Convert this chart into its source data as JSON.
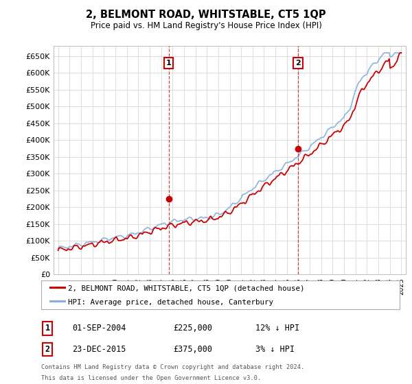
{
  "title": "2, BELMONT ROAD, WHITSTABLE, CT5 1QP",
  "subtitle": "Price paid vs. HM Land Registry's House Price Index (HPI)",
  "ylabel_ticks": [
    "£0",
    "£50K",
    "£100K",
    "£150K",
    "£200K",
    "£250K",
    "£300K",
    "£350K",
    "£400K",
    "£450K",
    "£500K",
    "£550K",
    "£600K",
    "£650K"
  ],
  "ytick_values": [
    0,
    50000,
    100000,
    150000,
    200000,
    250000,
    300000,
    350000,
    400000,
    450000,
    500000,
    550000,
    600000,
    650000
  ],
  "ylim": [
    0,
    680000
  ],
  "xlim_start": 1994.6,
  "xlim_end": 2025.4,
  "sale1_x": 2004.667,
  "sale1_y": 225000,
  "sale1_label": "1",
  "sale1_date": "01-SEP-2004",
  "sale1_price": "£225,000",
  "sale1_pct": "12% ↓ HPI",
  "sale2_x": 2015.978,
  "sale2_y": 375000,
  "sale2_label": "2",
  "sale2_date": "23-DEC-2015",
  "sale2_price": "£375,000",
  "sale2_pct": "3% ↓ HPI",
  "legend_line1": "2, BELMONT ROAD, WHITSTABLE, CT5 1QP (detached house)",
  "legend_line2": "HPI: Average price, detached house, Canterbury",
  "footer1": "Contains HM Land Registry data © Crown copyright and database right 2024.",
  "footer2": "This data is licensed under the Open Government Licence v3.0.",
  "red_color": "#cc0000",
  "blue_color": "#88aedd",
  "bg_color": "#ffffff",
  "grid_color": "#dddddd"
}
